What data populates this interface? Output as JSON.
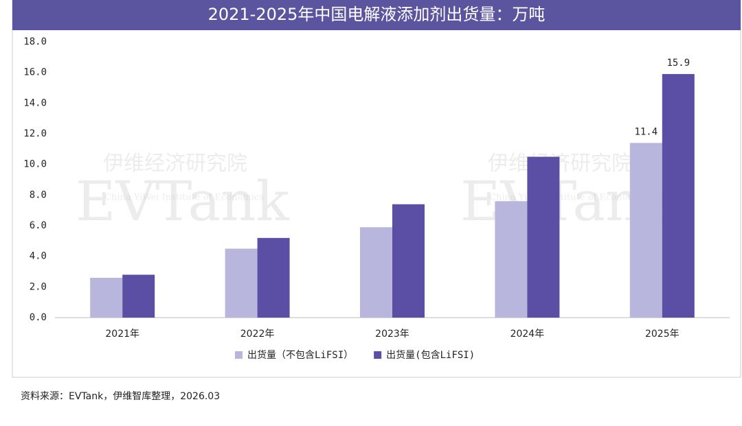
{
  "chart_data": {
    "type": "bar",
    "title": "2021-2025年中国电解液添加剂出货量：万吨",
    "categories": [
      "2021年",
      "2022年",
      "2023年",
      "2024年",
      "2025年"
    ],
    "series": [
      {
        "name": "出货量（不包含LiFSI）",
        "color": "#b8b6dc",
        "values": [
          2.6,
          4.5,
          5.9,
          7.6,
          11.4
        ],
        "value_labels": [
          null,
          null,
          null,
          null,
          "11.4"
        ]
      },
      {
        "name": "出货量(包含LiFSI)",
        "color": "#5a4fa5",
        "values": [
          2.8,
          5.2,
          7.4,
          10.5,
          15.9
        ],
        "value_labels": [
          null,
          null,
          null,
          null,
          "15.9"
        ]
      }
    ],
    "ylim": [
      0,
      18
    ],
    "yticks": [
      {
        "value": 0,
        "label": "0.0"
      },
      {
        "value": 2,
        "label": "2.0"
      },
      {
        "value": 4,
        "label": "4.0"
      },
      {
        "value": 6,
        "label": "6.0"
      },
      {
        "value": 8,
        "label": "8.0"
      },
      {
        "value": 10,
        "label": "10.0"
      },
      {
        "value": 12,
        "label": "12.0"
      },
      {
        "value": 14,
        "label": "14.0"
      },
      {
        "value": 16,
        "label": "16.0"
      },
      {
        "value": 18,
        "label": "18.0"
      }
    ],
    "legend": "bottom",
    "source": "资料来源：EVTank，伊维智库整理，2026.03",
    "watermark": [
      "伊维经济研究院",
      "China YiWei Institute of Economics",
      "EVTank"
    ]
  }
}
